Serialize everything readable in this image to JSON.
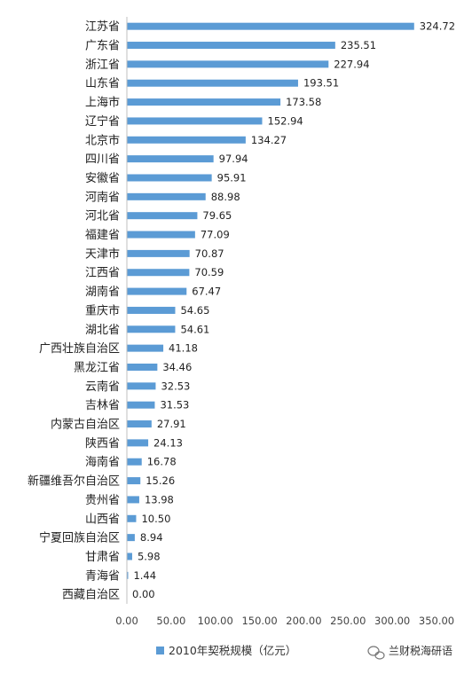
{
  "chart_data": {
    "type": "bar",
    "orientation": "horizontal",
    "categories": [
      "江苏省",
      "广东省",
      "浙江省",
      "山东省",
      "上海市",
      "辽宁省",
      "北京市",
      "四川省",
      "安徽省",
      "河南省",
      "河北省",
      "福建省",
      "天津市",
      "江西省",
      "湖南省",
      "重庆市",
      "湖北省",
      "广西壮族自治区",
      "黑龙江省",
      "云南省",
      "吉林省",
      "内蒙古自治区",
      "陕西省",
      "海南省",
      "新疆维吾尔自治区",
      "贵州省",
      "山西省",
      "宁夏回族自治区",
      "甘肃省",
      "青海省",
      "西藏自治区"
    ],
    "series": [
      {
        "name": "2010年契税规模（亿元）",
        "values": [
          324.72,
          235.51,
          227.94,
          193.51,
          173.58,
          152.94,
          134.27,
          97.94,
          95.91,
          88.98,
          79.65,
          77.09,
          70.87,
          70.59,
          67.47,
          54.65,
          54.61,
          41.18,
          34.46,
          32.53,
          31.53,
          27.91,
          24.13,
          16.78,
          15.26,
          13.98,
          10.5,
          8.94,
          5.98,
          1.44,
          0.0
        ],
        "value_labels": [
          "324.72",
          "235.51",
          "227.94",
          "193.51",
          "173.58",
          "152.94",
          "134.27",
          "97.94",
          "95.91",
          "88.98",
          "79.65",
          "77.09",
          "70.87",
          "70.59",
          "67.47",
          "54.65",
          "54.61",
          "41.18",
          "34.46",
          "32.53",
          "31.53",
          "27.91",
          "24.13",
          "16.78",
          "15.26",
          "13.98",
          "10.50",
          "8.94",
          "5.98",
          "1.44",
          "0.00"
        ]
      }
    ],
    "xlim": [
      0,
      350
    ],
    "x_ticks": [
      "0.00",
      "50.00",
      "100.00",
      "150.00",
      "200.00",
      "250.00",
      "300.00",
      "350.00"
    ],
    "legend": "bottom",
    "grid": false,
    "bar_color": "#5b9bd5"
  },
  "watermark": {
    "icon": "wechat-icon",
    "text": "兰财税海研语"
  }
}
